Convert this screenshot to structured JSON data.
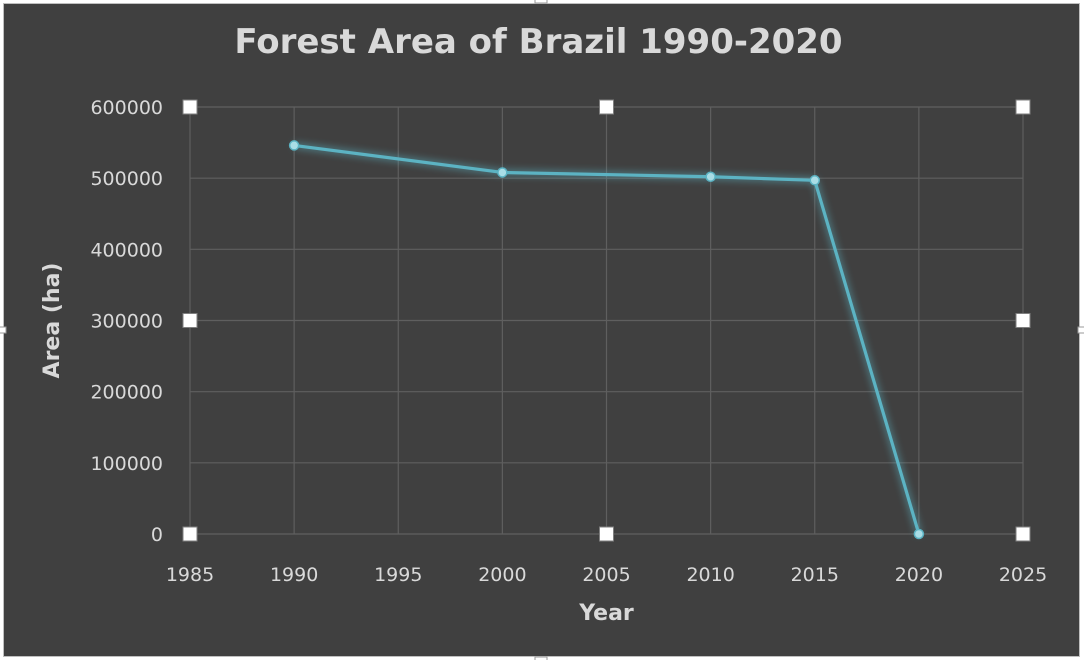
{
  "chart_data": {
    "type": "scatter",
    "title": "Forest Area of Brazil 1990-2020",
    "xlabel": "Year",
    "ylabel": "Area (ha)",
    "xlim": [
      1985,
      2025
    ],
    "ylim": [
      0,
      600000
    ],
    "x_ticks": [
      1985,
      1990,
      1995,
      2000,
      2005,
      2010,
      2015,
      2020,
      2025
    ],
    "y_ticks": [
      0,
      100000,
      200000,
      300000,
      400000,
      500000,
      600000
    ],
    "grid": true,
    "legend": "none",
    "series": [
      {
        "x": [
          1990,
          2000,
          2010,
          2015,
          2020
        ],
        "y": [
          546000,
          508000,
          502000,
          497000,
          0
        ],
        "color": "#5bb3c3",
        "style": "lines-and-markers"
      }
    ]
  },
  "colors": {
    "background": "#404040",
    "text": "#d9d9d9",
    "gridline": "#5f5f5f",
    "line": "#5bb3c3"
  }
}
